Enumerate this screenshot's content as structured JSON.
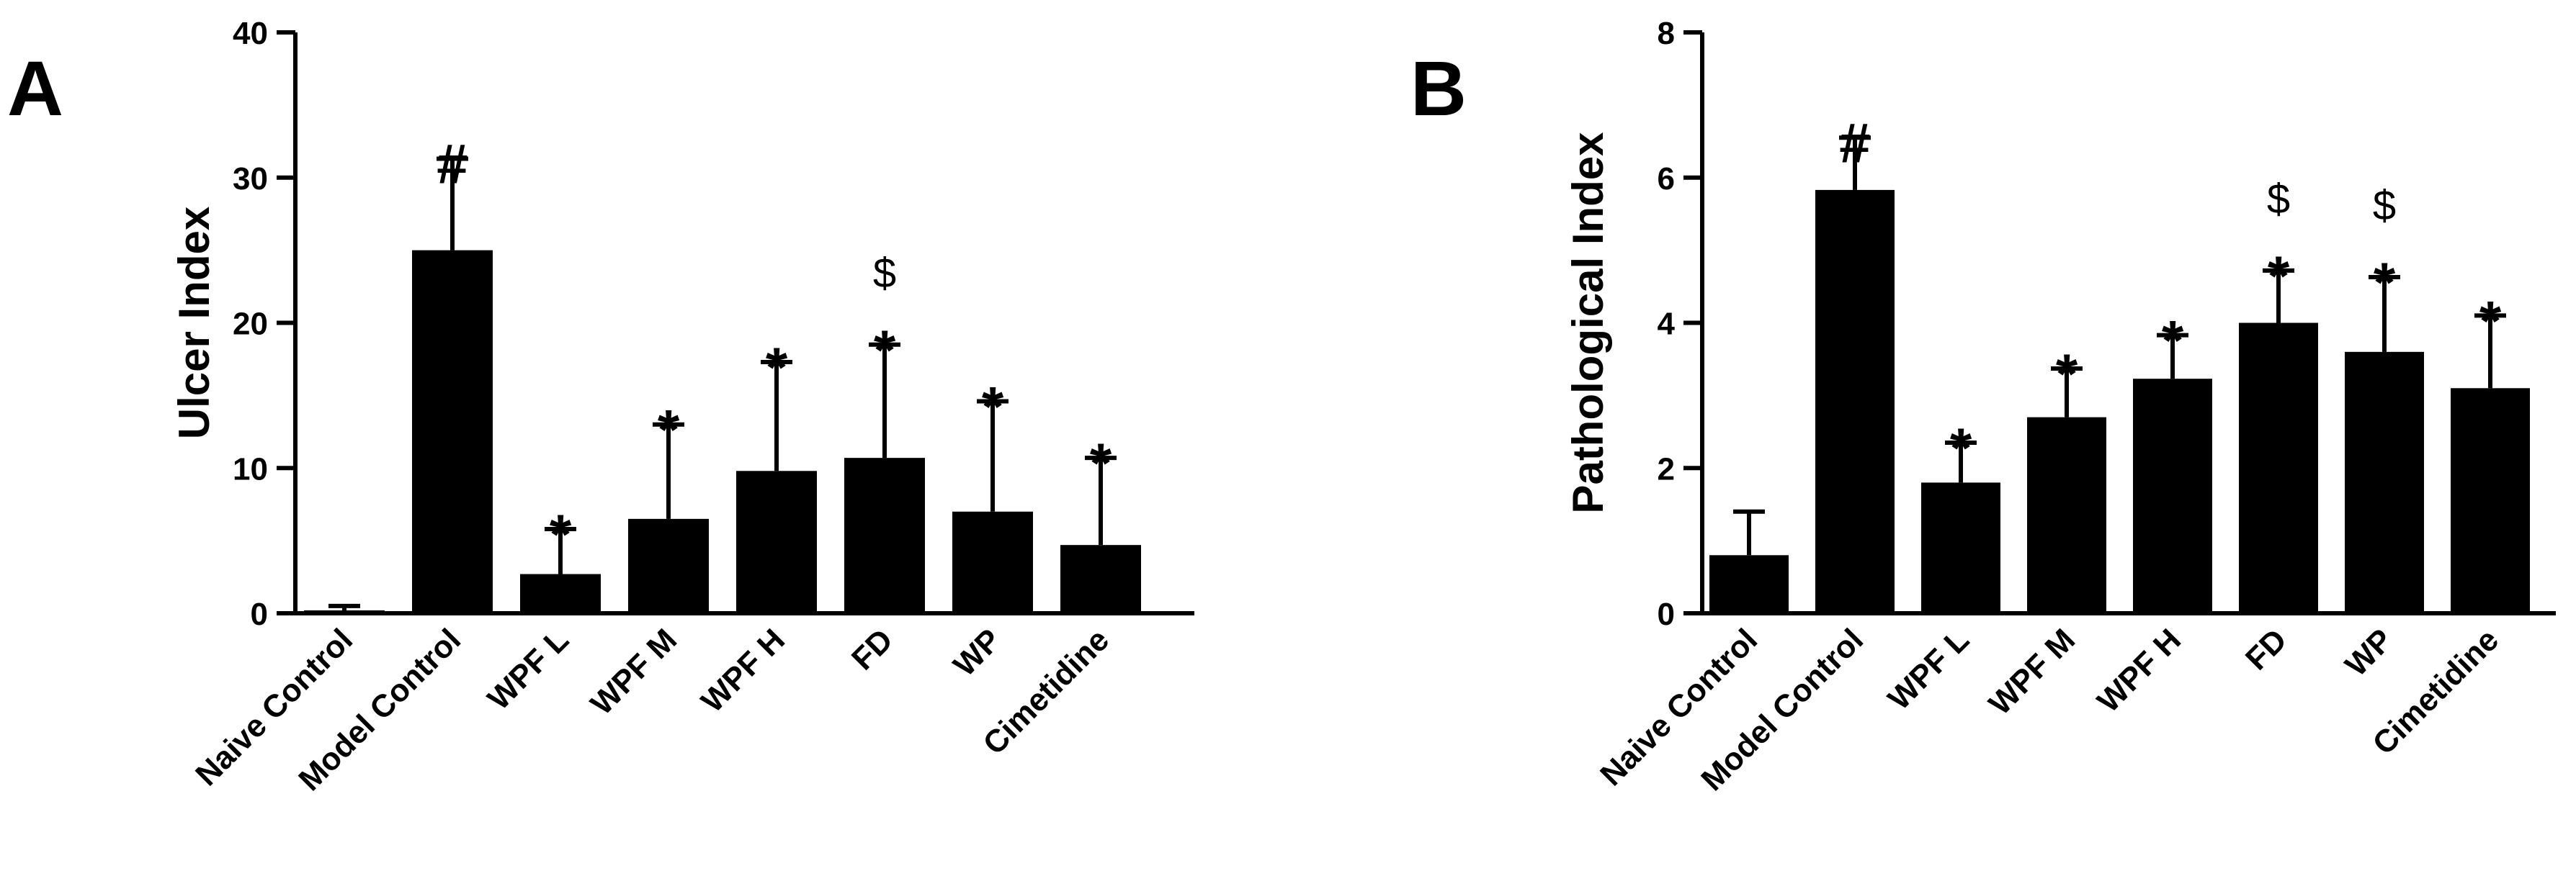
{
  "chart_data": [
    {
      "panel": "A",
      "type": "bar",
      "ylabel": "Ulcer Index",
      "ylim": [
        0,
        40
      ],
      "yticks": [
        0,
        10,
        20,
        30,
        40
      ],
      "categories": [
        "Naive Control",
        "Model Control",
        "WPF L",
        "WPF M",
        "WPF H",
        "FD",
        "WP",
        "Cimetidine"
      ],
      "values": [
        0.2,
        25,
        2.7,
        6.5,
        9.8,
        10.7,
        7.0,
        4.7
      ],
      "errors": [
        0.3,
        6.3,
        3.1,
        6.5,
        7.5,
        7.8,
        7.6,
        6.0
      ],
      "annotations": [
        [
          ""
        ],
        [
          "#"
        ],
        [
          "*"
        ],
        [
          "*"
        ],
        [
          "*"
        ],
        [
          "*",
          "$"
        ],
        [
          "*"
        ],
        [
          "*"
        ]
      ]
    },
    {
      "panel": "B",
      "type": "bar",
      "ylabel": "Pathological Index",
      "ylim": [
        0,
        8
      ],
      "yticks": [
        0,
        2,
        4,
        6,
        8
      ],
      "categories": [
        "Naive Control",
        "Model Control",
        "WPF L",
        "WPF M",
        "WPF H",
        "FD",
        "WP",
        "Cimetidine"
      ],
      "values": [
        0.8,
        5.83,
        1.8,
        2.7,
        3.23,
        4.0,
        3.6,
        3.1
      ],
      "errors": [
        0.6,
        0.72,
        0.55,
        0.67,
        0.6,
        0.72,
        1.03,
        1.0
      ],
      "annotations": [
        [
          ""
        ],
        [
          "#"
        ],
        [
          "*"
        ],
        [
          "*"
        ],
        [
          "*"
        ],
        [
          "*",
          "$"
        ],
        [
          "*",
          "$"
        ],
        [
          "*"
        ]
      ]
    }
  ]
}
